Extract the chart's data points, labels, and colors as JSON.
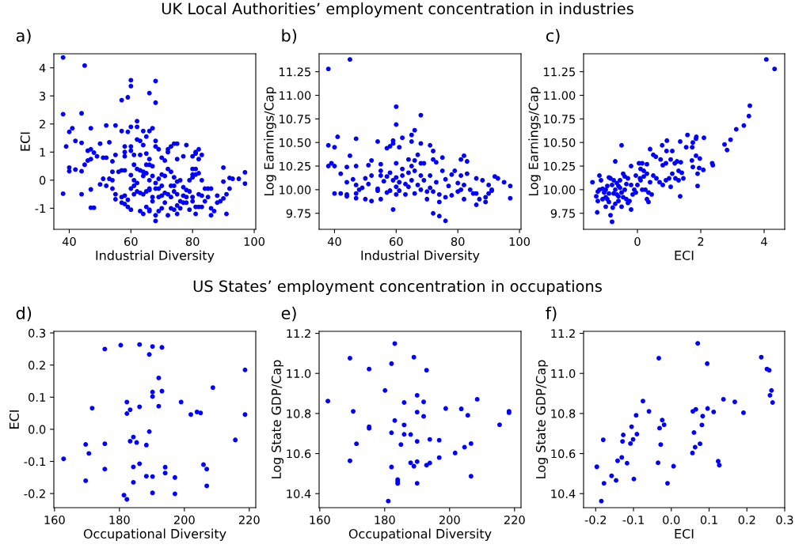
{
  "chart_data": [
    {
      "type": "scatter",
      "title": "UK Local Authorities’ employment concentration in industries",
      "annotations": [
        "a)"
      ],
      "xlabel": "Industrial Diversity",
      "ylabel": "ECI",
      "color": "#0000ff",
      "marker": "circle",
      "xlim": [
        35,
        100.5
      ],
      "ylim": [
        -1.75,
        4.5
      ],
      "xticks": [
        40,
        60,
        80,
        100
      ],
      "yticks": [
        -1,
        0,
        1,
        2,
        3,
        4
      ],
      "x": [
        38,
        45,
        60,
        60,
        68,
        66,
        57,
        59,
        68,
        38,
        44,
        62,
        62,
        60,
        52,
        55,
        47,
        41,
        40,
        57,
        59,
        64,
        66,
        67,
        42,
        44,
        39,
        50,
        53,
        58,
        60,
        62,
        63,
        65,
        68,
        68,
        64,
        46,
        47,
        48,
        49,
        46,
        47,
        45,
        40,
        40,
        42,
        44,
        51,
        52,
        54,
        55,
        58,
        58,
        60,
        61,
        63,
        65,
        66,
        66,
        67,
        69,
        70,
        71,
        72,
        72,
        73,
        74,
        75,
        75,
        77,
        78,
        80,
        81,
        81,
        82,
        82,
        83,
        80,
        81,
        79,
        80,
        80,
        81,
        82,
        83,
        90,
        90,
        92,
        93,
        95,
        97,
        97,
        54,
        53,
        54,
        51,
        50,
        52,
        55,
        55,
        54,
        56,
        57,
        58,
        60,
        61,
        62,
        63,
        64,
        64,
        65,
        66,
        61,
        62,
        60,
        61,
        59,
        58,
        57,
        58,
        57,
        59,
        60,
        63,
        64,
        65,
        66,
        66,
        67,
        68,
        68,
        69,
        70,
        71,
        72,
        73,
        74,
        75,
        75,
        76,
        77,
        78,
        79,
        80,
        81,
        81,
        82,
        83,
        84,
        85,
        86,
        86,
        87,
        88,
        88,
        89,
        90,
        91,
        91,
        92,
        86,
        85,
        84,
        83,
        82,
        80,
        79,
        78,
        77,
        76,
        75,
        74,
        73,
        72,
        71,
        70,
        69,
        68,
        68,
        69,
        70,
        71,
        72,
        73,
        74,
        75,
        76,
        77,
        78,
        73,
        74,
        70,
        69,
        66,
        65,
        64,
        63,
        62,
        61,
        67,
        38,
        44,
        47,
        47,
        48,
        66,
        67,
        65
      ],
      "values": [
        4.37,
        4.08,
        3.56,
        3.35,
        3.53,
        3.1,
        2.85,
        2.95,
        2.76,
        2.35,
        2.38,
        2.1,
        1.9,
        1.9,
        1.95,
        1.95,
        1.85,
        1.85,
        1.72,
        1.75,
        1.72,
        1.75,
        1.75,
        1.85,
        1.4,
        1.33,
        1.2,
        1.3,
        1.35,
        1.2,
        1.2,
        1.45,
        1.4,
        1.55,
        1.4,
        1.2,
        1.25,
        1.05,
        1.1,
        0.98,
        0.85,
        0.7,
        0.75,
        0.55,
        0.45,
        0.32,
        0.38,
        0.32,
        0.8,
        0.8,
        0.67,
        0.9,
        0.85,
        1.0,
        1.05,
        0.9,
        0.9,
        0.95,
        0.75,
        0.55,
        0.5,
        1.1,
        0.8,
        0.7,
        1.0,
        1.1,
        1.2,
        1.3,
        1.3,
        0.75,
        0.85,
        1.25,
        0.85,
        0.95,
        1.0,
        1.1,
        0.75,
        0.9,
        0.4,
        0.4,
        0.0,
        0.1,
        0.2,
        0.2,
        0.25,
        0.0,
        0.45,
        -0.05,
        0.08,
        0.05,
        0.05,
        0.28,
        -0.12,
        0.3,
        0.05,
        0.0,
        0.05,
        -0.15,
        -0.2,
        -0.5,
        -0.68,
        -0.3,
        0.3,
        0.35,
        0.35,
        0.18,
        0.55,
        0.4,
        0.35,
        0.3,
        0.15,
        0.25,
        0.0,
        0.0,
        -0.1,
        -0.3,
        -0.5,
        -0.7,
        -0.85,
        -0.8,
        -0.55,
        -0.6,
        -0.95,
        -1.05,
        -1.1,
        -1.2,
        -0.95,
        -1.05,
        -1.1,
        -0.75,
        -1.25,
        -1.45,
        -1.1,
        -1.0,
        -0.8,
        -1.25,
        -1.0,
        -1.05,
        -1.2,
        -0.9,
        -1.0,
        -0.8,
        -0.8,
        -1.05,
        -0.75,
        -0.95,
        -1.2,
        -0.95,
        -0.95,
        -0.75,
        -0.6,
        -1.0,
        -1.25,
        -1.1,
        -0.55,
        -0.8,
        -0.75,
        -0.65,
        -0.5,
        -1.2,
        -0.3,
        -0.3,
        -0.3,
        -0.3,
        -0.55,
        -0.5,
        -0.6,
        -0.4,
        -0.6,
        -0.55,
        -0.75,
        -0.5,
        -0.4,
        -0.6,
        -0.5,
        -0.45,
        -0.55,
        -0.6,
        -0.3,
        -0.1,
        0.05,
        0.2,
        0.15,
        0.4,
        0.3,
        0.1,
        -0.05,
        0.0,
        -0.25,
        -0.35,
        -0.2,
        -0.2,
        -0.2,
        -0.3,
        -0.35,
        -0.4,
        -0.5,
        -0.45,
        -0.4,
        -0.2,
        -0.6,
        -0.48,
        -0.5,
        -0.33,
        -0.98,
        -0.98,
        -0.3,
        0.15,
        0.55
      ]
    },
    {
      "type": "scatter",
      "annotations": [
        "b)"
      ],
      "xlabel": "Industrial Diversity",
      "ylabel": "Log Earnings/Cap",
      "color": "#0000ff",
      "marker": "circle",
      "xlim": [
        35,
        100.5
      ],
      "ylim": [
        9.58,
        11.44
      ],
      "xticks": [
        40,
        60,
        80,
        100
      ],
      "yticks": [
        9.75,
        {
          "value": 10.0,
          "label": "10.00"
        },
        10.25,
        {
          "value": 10.5,
          "label": "10.50"
        },
        10.75,
        {
          "value": 11.0,
          "label": "11.00"
        },
        11.25
      ],
      "x": [
        38,
        45,
        60,
        68,
        60,
        66,
        65,
        65,
        62,
        59,
        59,
        58,
        57,
        61,
        54,
        47,
        41,
        38,
        40,
        45,
        39,
        38,
        40,
        42,
        44,
        47,
        44,
        46,
        47,
        48,
        49,
        47,
        47,
        44,
        44,
        42,
        40,
        50,
        50,
        51,
        51,
        52,
        52,
        52,
        54,
        54,
        55,
        55,
        55,
        55,
        56,
        57,
        57,
        58,
        58,
        59,
        59,
        60,
        60,
        60,
        60,
        61,
        61,
        62,
        62,
        63,
        63,
        64,
        64,
        64,
        65,
        65,
        66,
        66,
        66,
        67,
        67,
        68,
        68,
        68,
        68,
        69,
        69,
        70,
        70,
        71,
        71,
        71,
        72,
        72,
        72,
        72,
        73,
        73,
        74,
        74,
        74,
        75,
        75,
        76,
        76,
        76,
        77,
        78,
        78,
        79,
        80,
        80,
        81,
        81,
        81,
        82,
        82,
        82,
        83,
        83,
        84,
        85,
        86,
        86,
        86,
        87,
        88,
        89,
        89,
        90,
        90,
        91,
        91,
        92,
        93,
        95,
        97,
        97
      ],
      "values": [
        11.28,
        11.38,
        10.88,
        10.79,
        10.69,
        10.63,
        10.58,
        10.51,
        10.55,
        10.52,
        10.49,
        10.46,
        10.44,
        10.45,
        10.51,
        10.54,
        10.56,
        10.47,
        10.45,
        10.36,
        10.28,
        10.25,
        10.25,
        10.17,
        10.24,
        10.25,
        10.08,
        10.11,
        10.05,
        10.0,
        10.02,
        9.96,
        9.91,
        9.95,
        9.93,
        9.96,
        9.96,
        9.9,
        10.12,
        10.06,
        10.26,
        10.31,
        10.15,
        9.88,
        10.01,
        9.99,
        10.27,
        10.2,
        10.15,
        9.9,
        10.09,
        10.14,
        9.97,
        9.99,
        10.18,
        10.1,
        9.79,
        10.28,
        10.13,
        10.03,
        9.95,
        10.08,
        9.99,
        10.15,
        10.22,
        10.06,
        9.95,
        10.32,
        10.18,
        10.03,
        10.1,
        10.25,
        10.31,
        10.2,
        9.96,
        10.37,
        10.05,
        10.49,
        10.28,
        10.15,
        10.0,
        10.28,
        10.1,
        9.98,
        9.9,
        10.47,
        10.15,
        10.02,
        10.41,
        10.32,
        9.98,
        9.75,
        10.29,
        10.08,
        9.95,
        9.72,
        9.87,
        10.34,
        10.2,
        10.11,
        9.92,
        9.67,
        10.04,
        10.16,
        9.94,
        10.2,
        10.07,
        9.98,
        10.32,
        10.15,
        10.0,
        10.36,
        10.05,
        9.9,
        10.3,
        10.17,
        10.0,
        9.96,
        10.12,
        9.96,
        9.84,
        9.9,
        10.1,
        9.92,
        9.87,
        10.05,
        9.96,
        9.99,
        10.0,
        10.14,
        10.12,
        10.08,
        10.04,
        9.91
      ]
    },
    {
      "type": "scatter",
      "annotations": [
        "c)"
      ],
      "xlabel": "ECI",
      "ylabel": "Log Earnings/Cap",
      "color": "#0000ff",
      "marker": "circle",
      "xlim": [
        -1.7,
        4.65
      ],
      "ylim": [
        9.58,
        11.44
      ],
      "xticks": [
        0,
        2,
        4
      ],
      "yticks": [
        9.75,
        {
          "value": 10.0,
          "label": "10.00"
        },
        10.25,
        {
          "value": 10.5,
          "label": "10.50"
        },
        10.75,
        {
          "value": 11.0,
          "label": "11.00"
        },
        11.25
      ],
      "x": [
        4.07,
        4.33,
        3.55,
        3.52,
        3.36,
        3.12,
        2.94,
        2.75,
        2.83,
        2.36,
        2.38,
        2.1,
        1.86,
        1.85,
        1.58,
        1.75,
        1.73,
        1.54,
        1.35,
        1.85,
        1.97,
        1.72,
        1.75,
        1.95,
        2.08,
        1.9,
        1.9,
        1.35,
        1.37,
        1.1,
        0.93,
        0.92,
        0.78,
        1.05,
        0.4,
        0.5,
        0.58,
        0.73,
        0.8,
        0.9,
        1.05,
        1.18,
        1.25,
        1.3,
        1.4,
        1.45,
        1.3,
        1.2,
        1.1,
        1.0,
        0.9,
        0.8,
        0.7,
        0.6,
        0.5,
        0.4,
        0.3,
        0.2,
        0.1,
        0.05,
        0.15,
        0.3,
        0.2,
        0.1,
        0.0,
        -0.05,
        0.08,
        0.35,
        0.45,
        0.3,
        0.35,
        0.25,
        0.15,
        -0.1,
        -0.2,
        -0.2,
        -0.3,
        -0.35,
        -0.4,
        -0.45,
        -0.5,
        -0.7,
        -0.55,
        -0.6,
        -0.65,
        -0.7,
        -0.75,
        -0.8,
        -0.85,
        -0.9,
        -0.95,
        -1.0,
        -1.05,
        -1.1,
        -1.15,
        -1.2,
        -1.25,
        -1.3,
        -1.25,
        -1.2,
        -1.42,
        -1.27,
        -1.0,
        -0.9,
        -0.85,
        -0.78,
        -0.8,
        -0.7,
        -0.6,
        -0.5,
        -0.45,
        -0.35,
        -0.3,
        -0.2,
        -0.25,
        -0.15,
        -0.05,
        -0.5,
        -0.6,
        -0.4,
        -0.55,
        -0.65,
        -0.75,
        -0.9,
        -1.0,
        -1.1,
        -0.95
      ],
      "values": [
        11.38,
        11.28,
        10.89,
        10.78,
        10.68,
        10.64,
        10.53,
        10.48,
        10.42,
        10.28,
        10.26,
        10.55,
        10.56,
        10.54,
        10.58,
        10.5,
        10.45,
        10.45,
        10.51,
        10.36,
        10.33,
        10.31,
        10.24,
        10.23,
        10.21,
        10.17,
        10.04,
        9.93,
        10.29,
        10.41,
        10.52,
        10.41,
        10.47,
        10.03,
        10.43,
        10.37,
        10.35,
        10.32,
        10.26,
        10.28,
        10.32,
        10.28,
        10.3,
        10.2,
        10.18,
        10.12,
        10.1,
        10.12,
        10.17,
        10.12,
        10.1,
        10.05,
        10.08,
        10.12,
        10.15,
        10.08,
        10.17,
        10.2,
        10.22,
        10.28,
        10.28,
        10.27,
        10.14,
        10.1,
        10.05,
        10.15,
        10.12,
        9.97,
        9.95,
        9.9,
        9.87,
        10.0,
        10.0,
        10.0,
        10.05,
        10.25,
        10.12,
        10.06,
        10.14,
        10.17,
        10.47,
        10.3,
        10.1,
        10.04,
        10.07,
        10.0,
        10.1,
        10.05,
        10.12,
        10.13,
        10.04,
        10.0,
        9.97,
        10.01,
        10.1,
        10.0,
        9.98,
        9.93,
        9.88,
        10.15,
        10.08,
        9.76,
        9.82,
        9.87,
        9.73,
        9.81,
        9.66,
        9.85,
        9.88,
        9.82,
        9.92,
        9.9,
        9.86,
        9.79,
        9.88,
        9.95,
        9.97,
        9.97,
        9.93,
        10.0,
        10.02,
        9.95,
        9.96,
        9.96,
        9.92,
        9.9,
        9.9
      ]
    },
    {
      "type": "scatter",
      "title": "US States’ employment concentration in occupations",
      "annotations": [
        "d)"
      ],
      "xlabel": "Occupational Diversity",
      "ylabel": "ECI",
      "color": "#0000ff",
      "marker": "circle",
      "xlim": [
        159.8,
        222
      ],
      "ylim": [
        -0.244,
        0.305
      ],
      "xticks": [
        160,
        180,
        200,
        220
      ],
      "yticks": [
        -0.2,
        -0.1,
        {
          "value": 0,
          "label": "0.0"
        },
        0.1,
        0.2,
        0.3
      ],
      "x": [
        162.8,
        169.6,
        170.6,
        169.6,
        171.6,
        175.5,
        175.5,
        175.5,
        180.4,
        181.4,
        182.3,
        182.3,
        182.3,
        183.3,
        183.3,
        184.3,
        184.3,
        184.3,
        185.3,
        186.2,
        186.2,
        186.2,
        188.3,
        188.3,
        189.2,
        189.2,
        190.2,
        190.2,
        190.2,
        190.2,
        190.2,
        192.1,
        192.1,
        193.1,
        193.1,
        194.1,
        194.1,
        197.1,
        197.1,
        199.0,
        202.0,
        203.9,
        205.0,
        205.9,
        206.9,
        206.9,
        208.8,
        215.7,
        218.7,
        218.7
      ],
      "values": [
        -0.092,
        -0.047,
        -0.075,
        -0.16,
        0.066,
        0.25,
        -0.045,
        -0.124,
        0.262,
        -0.205,
        -0.218,
        0.085,
        0.049,
        0.061,
        -0.037,
        -0.024,
        -0.117,
        -0.165,
        -0.041,
        0.264,
        0.07,
        -0.107,
        -0.049,
        -0.146,
        0.233,
        -0.007,
        0.258,
        0.116,
        0.102,
        -0.147,
        -0.198,
        0.16,
        0.072,
        0.255,
        0.119,
        -0.118,
        -0.136,
        -0.15,
        -0.201,
        0.085,
        0.046,
        0.054,
        0.051,
        -0.11,
        -0.124,
        -0.176,
        0.13,
        -0.033,
        0.185,
        0.046
      ]
    },
    {
      "type": "scatter",
      "annotations": [
        "e)"
      ],
      "xlabel": "Occupational Diversity",
      "ylabel": "Log State GDP/Cap",
      "color": "#0000ff",
      "marker": "circle",
      "xlim": [
        159.8,
        222
      ],
      "ylim": [
        10.33,
        11.21
      ],
      "xticks": [
        160,
        180,
        200,
        220
      ],
      "yticks": [
        10.4,
        10.6,
        10.8,
        {
          "value": 11,
          "label": "11.0"
        },
        11.2
      ],
      "x": [
        162.5,
        169.3,
        169.3,
        170.3,
        171.3,
        175.2,
        175.2,
        175.2,
        180.1,
        181.1,
        182.1,
        182.1,
        182.1,
        183.1,
        183.1,
        184.0,
        184.0,
        184.0,
        185.0,
        186.0,
        186.0,
        186.0,
        188.0,
        188.0,
        189.0,
        189.0,
        190.0,
        190.0,
        190.0,
        190.0,
        190.0,
        192.0,
        192.0,
        192.9,
        192.9,
        193.9,
        193.9,
        196.8,
        196.8,
        198.8,
        201.7,
        203.6,
        204.6,
        205.6,
        206.6,
        206.6,
        208.5,
        215.4,
        218.3,
        218.3
      ],
      "values": [
        10.862,
        11.076,
        10.564,
        10.811,
        10.649,
        11.022,
        10.734,
        10.726,
        10.915,
        10.363,
        11.049,
        10.704,
        10.533,
        11.149,
        10.765,
        10.47,
        10.461,
        10.451,
        10.645,
        10.855,
        10.743,
        10.696,
        10.695,
        10.554,
        11.081,
        10.537,
        10.891,
        10.807,
        10.661,
        10.56,
        10.452,
        10.858,
        10.786,
        11.016,
        10.542,
        10.671,
        10.553,
        10.667,
        10.58,
        10.825,
        10.603,
        10.823,
        10.632,
        10.791,
        10.65,
        10.487,
        10.871,
        10.744,
        10.811,
        10.804
      ]
    },
    {
      "type": "scatter",
      "annotations": [
        "f)"
      ],
      "xlabel": "ECI",
      "ylabel": "Log State GDP/Cap",
      "color": "#0000ff",
      "marker": "circle",
      "xlim": [
        -0.232,
        0.3
      ],
      "ylim": [
        10.33,
        11.21
      ],
      "xticks": [
        -0.2,
        -0.1,
        {
          "value": 0,
          "label": "0.0"
        },
        0.1,
        0.2,
        0.3
      ],
      "yticks": [
        10.4,
        10.6,
        10.8,
        {
          "value": 11,
          "label": "11.0"
        },
        11.2
      ],
      "x": [
        -0.197,
        -0.185,
        -0.18,
        -0.178,
        -0.158,
        -0.146,
        -0.142,
        -0.131,
        -0.129,
        -0.127,
        -0.117,
        -0.108,
        -0.105,
        -0.101,
        -0.099,
        -0.093,
        -0.091,
        -0.075,
        -0.059,
        -0.035,
        -0.033,
        -0.031,
        -0.028,
        -0.024,
        -0.019,
        -0.01,
        0.006,
        0.056,
        0.057,
        0.06,
        0.063,
        0.065,
        0.07,
        0.076,
        0.081,
        0.083,
        0.095,
        0.096,
        0.112,
        0.124,
        0.127,
        0.138,
        0.168,
        0.191,
        0.238,
        0.253,
        0.259,
        0.261,
        0.265,
        0.268
      ],
      "values": [
        10.534,
        10.363,
        10.669,
        10.452,
        10.489,
        10.466,
        10.564,
        10.581,
        10.661,
        10.693,
        10.552,
        10.65,
        10.734,
        10.671,
        10.473,
        10.791,
        10.697,
        10.862,
        10.811,
        10.554,
        11.076,
        10.727,
        10.645,
        10.767,
        10.744,
        10.452,
        10.537,
        10.603,
        10.811,
        10.705,
        10.632,
        10.821,
        11.15,
        10.649,
        10.743,
        10.787,
        11.049,
        10.825,
        10.808,
        10.562,
        10.542,
        10.871,
        10.858,
        10.804,
        11.081,
        11.022,
        11.016,
        10.891,
        10.915,
        10.855
      ]
    }
  ]
}
